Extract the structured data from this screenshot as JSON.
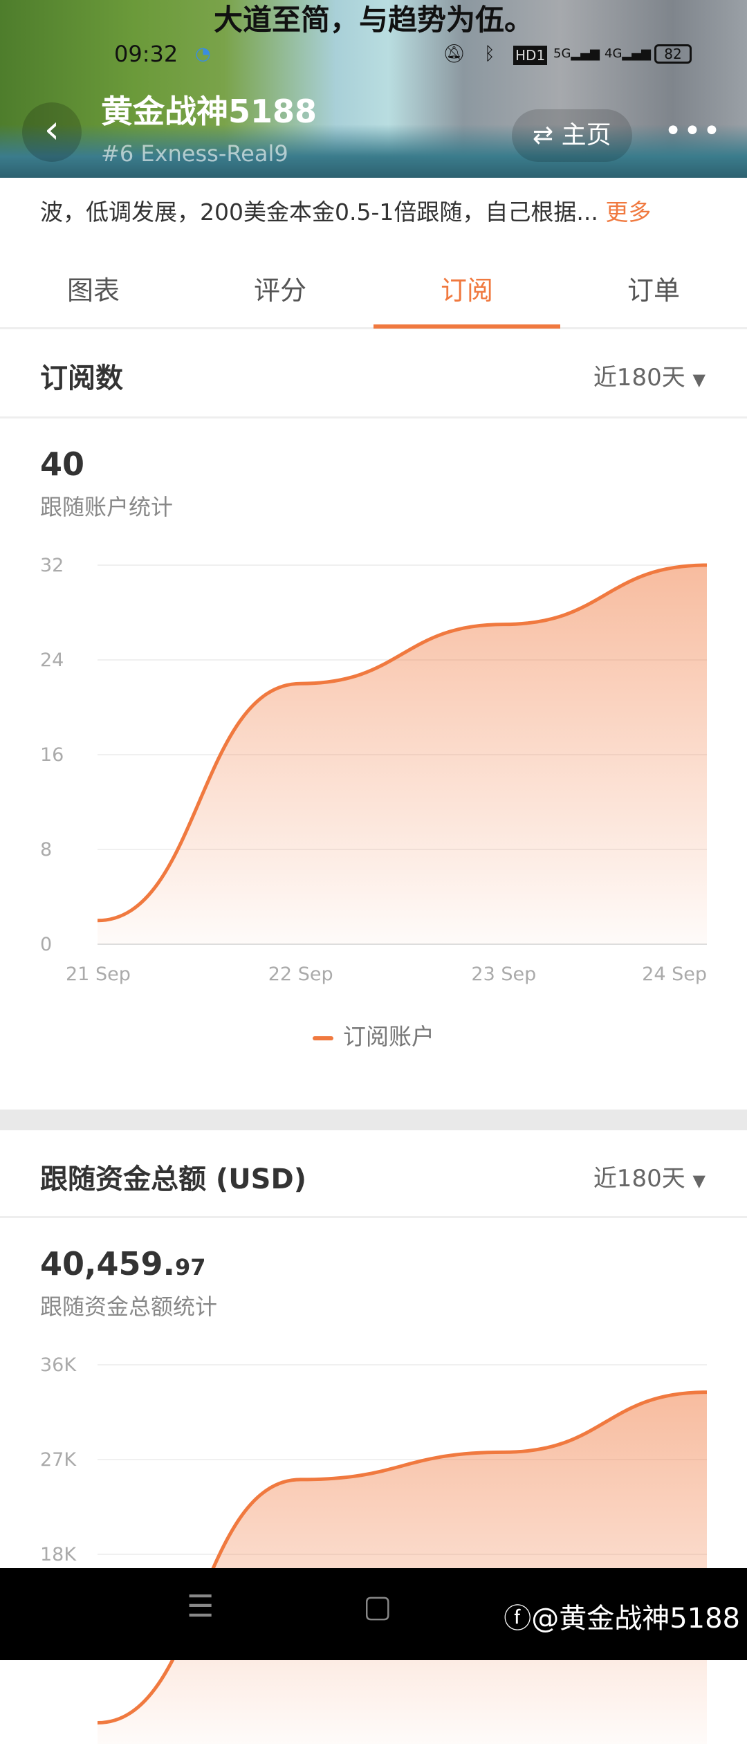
{
  "status_bar": {
    "banner": "大道至简，与趋势为伍。",
    "time": "09:32",
    "icons": [
      "mute-icon",
      "bluetooth-icon",
      "hd-icon",
      "5g-signal-icon",
      "4g-signal-icon"
    ],
    "network_labels": [
      "HD1",
      "5G",
      "4G"
    ],
    "battery": "82"
  },
  "header": {
    "title": "黄金战神5188",
    "subtitle": "#6  Exness-Real9",
    "home_label": "主页",
    "more_label": "•••"
  },
  "description": {
    "text": "波，低调发展，200美金本金0.5-1倍跟随，自己根据...",
    "more": "更多"
  },
  "tabs": [
    {
      "label": "图表"
    },
    {
      "label": "评分"
    },
    {
      "label": "订阅",
      "active": true
    },
    {
      "label": "订单"
    }
  ],
  "accent_color": "#f0793f",
  "section1": {
    "title": "订阅数",
    "range": "近180天",
    "value": "40",
    "caption": "跟随账户统计",
    "legend": "订阅账户"
  },
  "section2": {
    "title": "跟随资金总额 (USD)",
    "range": "近180天",
    "value_main": "40,459.",
    "value_decimal": "97",
    "caption": "跟随资金总额统计"
  },
  "chart_data": [
    {
      "type": "area",
      "x": [
        "21 Sep",
        "22 Sep",
        "23 Sep",
        "24 Sep"
      ],
      "series": [
        {
          "name": "订阅账户",
          "values": [
            2,
            22,
            27,
            32
          ]
        }
      ],
      "yticks": [
        "0",
        "8",
        "16",
        "24",
        "32"
      ],
      "ylim": [
        0,
        32
      ],
      "grid": true,
      "legend": "bottom"
    },
    {
      "type": "area",
      "x": [
        "21 Sep",
        "22 Sep",
        "23 Sep",
        "24 Sep"
      ],
      "series": [
        {
          "values": [
            2000,
            25100,
            27700,
            33400
          ]
        }
      ],
      "yticks": [
        "18K",
        "27K",
        "36K"
      ],
      "ylim": [
        0,
        36000
      ],
      "grid": true
    }
  ],
  "navbar": {
    "watermark": "@黄金战神5188"
  }
}
